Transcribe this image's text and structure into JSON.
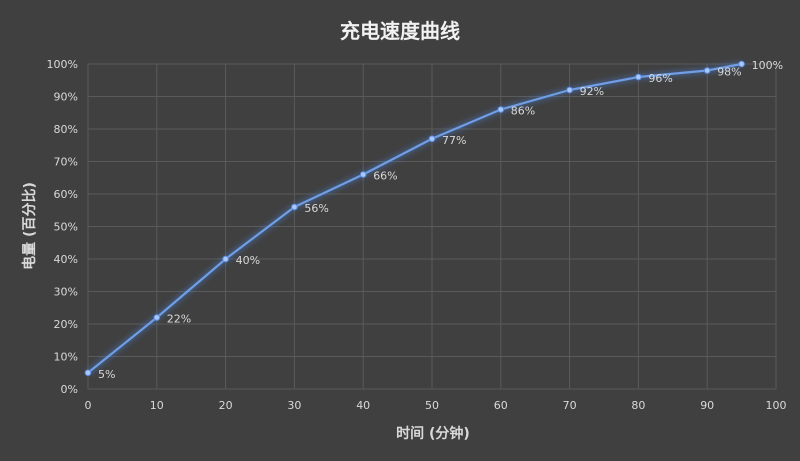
{
  "chart_data": {
    "type": "line",
    "title": "充电速度曲线",
    "xlabel": "时间 (分钟)",
    "ylabel": "电量 (百分比)",
    "xlim": [
      0,
      100
    ],
    "ylim": [
      0,
      100
    ],
    "x_ticks": [
      "0",
      "10",
      "20",
      "30",
      "40",
      "50",
      "60",
      "70",
      "80",
      "90",
      "100"
    ],
    "y_ticks": [
      "0%",
      "10%",
      "20%",
      "30%",
      "40%",
      "50%",
      "60%",
      "70%",
      "80%",
      "90%",
      "100%"
    ],
    "grid": true,
    "legend": "none",
    "series": [
      {
        "color": "#6f9ee6",
        "x": [
          0,
          10,
          20,
          30,
          40,
          50,
          60,
          70,
          80,
          90,
          95
        ],
        "y": [
          5,
          22,
          40,
          56,
          66,
          77,
          86,
          92,
          96,
          98,
          100
        ],
        "labels": [
          "5%",
          "22%",
          "40%",
          "56%",
          "66%",
          "77%",
          "86%",
          "92%",
          "96%",
          "98%",
          "100%"
        ]
      }
    ]
  }
}
